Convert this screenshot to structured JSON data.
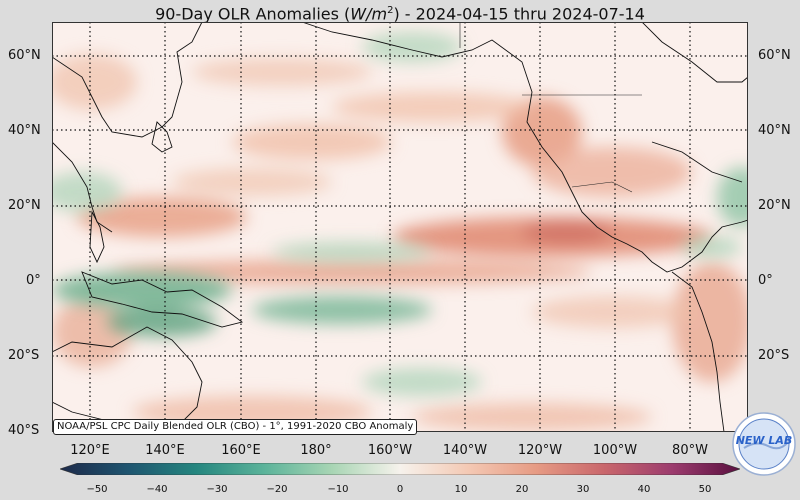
{
  "title": {
    "prefix": "90-Day OLR Anomalies (",
    "unit_base": "W/m",
    "unit_exp": "2",
    "suffix": ") - 2024-04-15 thru 2024-07-14"
  },
  "lat_labels": [
    "60°N",
    "40°N",
    "20°N",
    "0°",
    "20°S",
    "40°S"
  ],
  "lon_labels": [
    "120°E",
    "140°E",
    "160°E",
    "180°",
    "160°W",
    "140°W",
    "120°W",
    "100°W",
    "80°W"
  ],
  "credit": "NOAA/PSL CPC Daily Blended OLR (CBO) - 1°, 1991-2020 CBO Anomaly",
  "colorbar": {
    "ticks": [
      "−50",
      "−40",
      "−30",
      "−20",
      "−10",
      "0",
      "10",
      "20",
      "30",
      "40",
      "50"
    ],
    "colors": [
      "#1d2a4a",
      "#1f5570",
      "#25867f",
      "#5bb39a",
      "#a8d5b4",
      "#f6f2ec",
      "#f4c9b4",
      "#e69b84",
      "#c9676c",
      "#9c3c6e",
      "#5a1040"
    ]
  },
  "logo": {
    "text": "NEW LAB",
    "color_main": "#2a62c9"
  },
  "colors": {
    "positive": "#e3977e",
    "negative": "#5ea884",
    "background": "#fbf0ec"
  }
}
